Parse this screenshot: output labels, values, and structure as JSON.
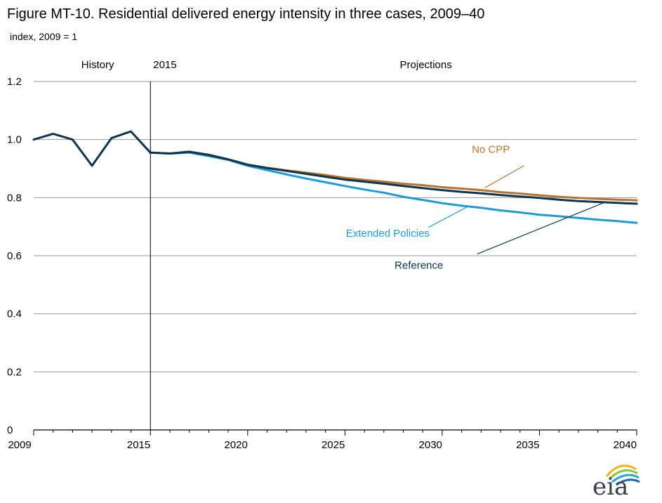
{
  "chart_data": {
    "type": "line",
    "title": "Figure MT-10. Residential delivered energy intensity in three cases, 2009–40",
    "ylabel": "index, 2009 = 1",
    "xlim": [
      2009,
      2040
    ],
    "ylim": [
      0,
      1.2
    ],
    "x_ticks": [
      2009,
      2015,
      2020,
      2025,
      2030,
      2035,
      2040
    ],
    "y_ticks": [
      "0",
      "0.2",
      "0.4",
      "0.6",
      "0.8",
      "1.0",
      "1.2"
    ],
    "y_tick_values": [
      0,
      0.2,
      0.4,
      0.6,
      0.8,
      1.0,
      1.2
    ],
    "grid": true,
    "divider_year": 2015,
    "regions": {
      "history": "History",
      "divider": "2015",
      "projections": "Projections"
    },
    "history": {
      "x": [
        2009,
        2010,
        2011,
        2012,
        2013,
        2014,
        2015
      ],
      "values": [
        1.0,
        1.02,
        1.0,
        0.91,
        1.005,
        1.028,
        0.955
      ]
    },
    "series": [
      {
        "name": "No CPP",
        "color": "#b87333",
        "x": [
          2015,
          2016,
          2017,
          2018,
          2019,
          2020,
          2021,
          2022,
          2023,
          2024,
          2025,
          2026,
          2027,
          2028,
          2029,
          2030,
          2031,
          2032,
          2033,
          2034,
          2035,
          2036,
          2037,
          2038,
          2039,
          2040
        ],
        "values": [
          0.955,
          0.952,
          0.958,
          0.948,
          0.932,
          0.914,
          0.903,
          0.894,
          0.886,
          0.878,
          0.868,
          0.861,
          0.855,
          0.848,
          0.843,
          0.836,
          0.831,
          0.826,
          0.819,
          0.814,
          0.808,
          0.803,
          0.799,
          0.796,
          0.793,
          0.791
        ]
      },
      {
        "name": "Reference",
        "color": "#0e3550",
        "x": [
          2015,
          2016,
          2017,
          2018,
          2019,
          2020,
          2021,
          2022,
          2023,
          2024,
          2025,
          2026,
          2027,
          2028,
          2029,
          2030,
          2031,
          2032,
          2033,
          2034,
          2035,
          2036,
          2037,
          2038,
          2039,
          2040
        ],
        "values": [
          0.955,
          0.952,
          0.958,
          0.947,
          0.932,
          0.913,
          0.902,
          0.892,
          0.882,
          0.872,
          0.862,
          0.855,
          0.848,
          0.84,
          0.833,
          0.826,
          0.82,
          0.815,
          0.809,
          0.804,
          0.799,
          0.793,
          0.788,
          0.785,
          0.782,
          0.779
        ]
      },
      {
        "name": "Extended Policies",
        "color": "#1e9bd7",
        "x": [
          2015,
          2016,
          2017,
          2018,
          2019,
          2020,
          2021,
          2022,
          2023,
          2024,
          2025,
          2026,
          2027,
          2028,
          2029,
          2030,
          2031,
          2032,
          2033,
          2034,
          2035,
          2036,
          2037,
          2038,
          2039,
          2040
        ],
        "values": [
          0.955,
          0.952,
          0.955,
          0.943,
          0.93,
          0.91,
          0.895,
          0.88,
          0.866,
          0.853,
          0.84,
          0.828,
          0.817,
          0.803,
          0.792,
          0.781,
          0.772,
          0.765,
          0.756,
          0.749,
          0.741,
          0.736,
          0.73,
          0.724,
          0.719,
          0.713
        ]
      }
    ],
    "annotations": [
      {
        "text": "No CPP",
        "color": "#b87333",
        "pos": [
          2032.5,
          0.955
        ],
        "pointer_from": [
          2034.2,
          0.91
        ],
        "pointer_to": [
          2032.2,
          0.834
        ]
      },
      {
        "text": "Extended Policies",
        "color": "#1e9bd7",
        "pos": [
          2027.2,
          0.665
        ],
        "pointer_from": [
          2029.3,
          0.698
        ],
        "pointer_to": [
          2031.4,
          0.772
        ]
      },
      {
        "text": "Reference",
        "color": "#0e3550",
        "pos": [
          2028.8,
          0.555
        ],
        "pointer_from": [
          2031.8,
          0.606
        ],
        "pointer_to": [
          2038.4,
          0.785
        ]
      }
    ]
  },
  "logo": {
    "text": "eia"
  }
}
